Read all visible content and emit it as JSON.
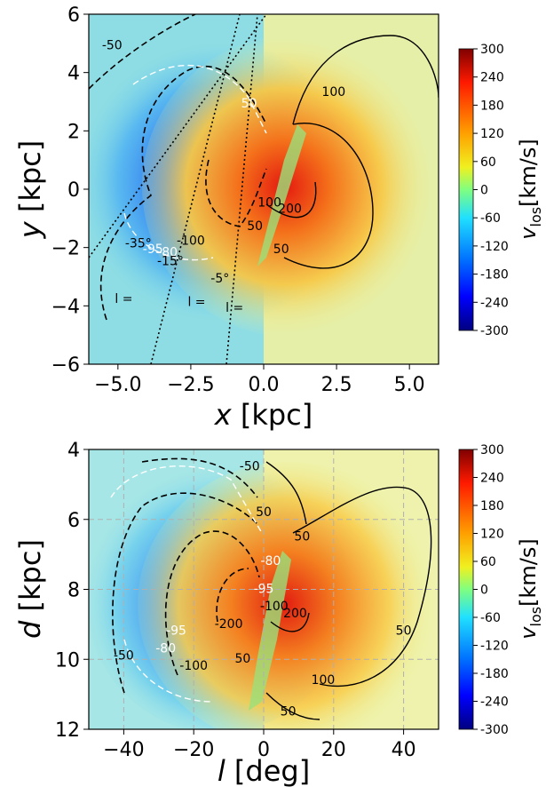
{
  "chart_data": [
    {
      "type": "heatmap",
      "panel": "top",
      "xlabel_sym": "x",
      "xlabel_unit": " [kpc]",
      "ylabel_sym": "y",
      "ylabel_unit": " [kpc]",
      "xlim": [
        -6,
        6
      ],
      "ylim": [
        -6,
        6
      ],
      "xticks": [
        "−5.0",
        "−2.5",
        "0.0",
        "2.5",
        "5.0"
      ],
      "xtick_values": [
        -5,
        -2.5,
        0,
        2.5,
        5
      ],
      "yticks": [
        "6",
        "4",
        "2",
        "0",
        "−2",
        "−4",
        "−6"
      ],
      "ytick_values": [
        6,
        4,
        2,
        0,
        -2,
        -4,
        -6
      ],
      "colorbar": {
        "label_sym": "v",
        "label_sub": "los",
        "label_unit": "[km/s]",
        "ticks": [
          "300",
          "240",
          "180",
          "120",
          "60",
          "0",
          "-60",
          "-120",
          "-180",
          "-240",
          "-300"
        ],
        "range": [
          -300,
          300
        ]
      },
      "contour_labels": [
        {
          "text": "-50",
          "x": -5.2,
          "y": 4.8,
          "color": "#000"
        },
        {
          "text": "100",
          "x": 2.4,
          "y": 3.2,
          "color": "#000"
        },
        {
          "text": "50",
          "x": -0.5,
          "y": 2.8,
          "color": "#fff"
        },
        {
          "text": "50",
          "x": -0.3,
          "y": -1.4,
          "color": "#000"
        },
        {
          "text": "50",
          "x": 0.6,
          "y": -2.2,
          "color": "#000"
        },
        {
          "text": "100",
          "x": 0.2,
          "y": -0.6,
          "color": "#000"
        },
        {
          "text": "200",
          "x": 0.9,
          "y": -0.8,
          "color": "#000"
        },
        {
          "text": "-100",
          "x": -2.5,
          "y": -1.9,
          "color": "#000"
        },
        {
          "text": "-80",
          "x": -3.3,
          "y": -2.3,
          "color": "#fff"
        },
        {
          "text": "-95",
          "x": -3.8,
          "y": -2.2,
          "color": "#fff"
        },
        {
          "text": "-35°",
          "x": -4.3,
          "y": -2.0,
          "color": "#000"
        },
        {
          "text": "-15°",
          "x": -3.2,
          "y": -2.6,
          "color": "#000"
        },
        {
          "text": "-5°",
          "x": -1.5,
          "y": -3.2,
          "color": "#000"
        },
        {
          "text": "l =",
          "x": -4.8,
          "y": -3.9,
          "color": "#000"
        },
        {
          "text": "l =",
          "x": -2.3,
          "y": -4.0,
          "color": "#000"
        },
        {
          "text": "l =",
          "x": -1.0,
          "y": -4.2,
          "color": "#000"
        }
      ]
    },
    {
      "type": "heatmap",
      "panel": "bottom",
      "xlabel_sym": "l",
      "xlabel_unit": " [deg]",
      "ylabel_sym": "d",
      "ylabel_unit": " [kpc]",
      "xlim": [
        -50,
        50
      ],
      "ylim": [
        4,
        12
      ],
      "xticks": [
        "−40",
        "−20",
        "0",
        "20",
        "40"
      ],
      "xtick_values": [
        -40,
        -20,
        0,
        20,
        40
      ],
      "yticks": [
        "4",
        "6",
        "8",
        "10",
        "12"
      ],
      "ytick_values": [
        4,
        6,
        8,
        10,
        12
      ],
      "grid": true,
      "colorbar": {
        "label_sym": "v",
        "label_sub": "los",
        "label_unit": "[km/s]",
        "ticks": [
          "300",
          "240",
          "180",
          "120",
          "60",
          "0",
          "-60",
          "-120",
          "-180",
          "-240",
          "-300"
        ],
        "range": [
          -300,
          300
        ]
      },
      "contour_labels": [
        {
          "text": "-50",
          "x": -4,
          "y": 4.6,
          "color": "#000"
        },
        {
          "text": "50",
          "x": 0,
          "y": 5.9,
          "color": "#000"
        },
        {
          "text": "50",
          "x": 11,
          "y": 6.6,
          "color": "#000"
        },
        {
          "text": "-80",
          "x": 2,
          "y": 7.3,
          "color": "#fff"
        },
        {
          "text": "-95",
          "x": 0,
          "y": 8.1,
          "color": "#fff"
        },
        {
          "text": "-100",
          "x": 3,
          "y": 8.6,
          "color": "#000"
        },
        {
          "text": "200",
          "x": 9,
          "y": 8.8,
          "color": "#000"
        },
        {
          "text": "-200",
          "x": -10,
          "y": 9.1,
          "color": "#000"
        },
        {
          "text": "50",
          "x": 40,
          "y": 9.3,
          "color": "#000"
        },
        {
          "text": "-50",
          "x": -40,
          "y": 10.0,
          "color": "#000"
        },
        {
          "text": "-80",
          "x": -28,
          "y": 9.8,
          "color": "#fff"
        },
        {
          "text": "-95",
          "x": -25,
          "y": 9.3,
          "color": "#fff"
        },
        {
          "text": "-100",
          "x": -20,
          "y": 10.3,
          "color": "#000"
        },
        {
          "text": "50",
          "x": -6,
          "y": 10.1,
          "color": "#000"
        },
        {
          "text": "100",
          "x": 17,
          "y": 10.7,
          "color": "#000"
        },
        {
          "text": "50",
          "x": 7,
          "y": 11.6,
          "color": "#000"
        }
      ]
    }
  ]
}
